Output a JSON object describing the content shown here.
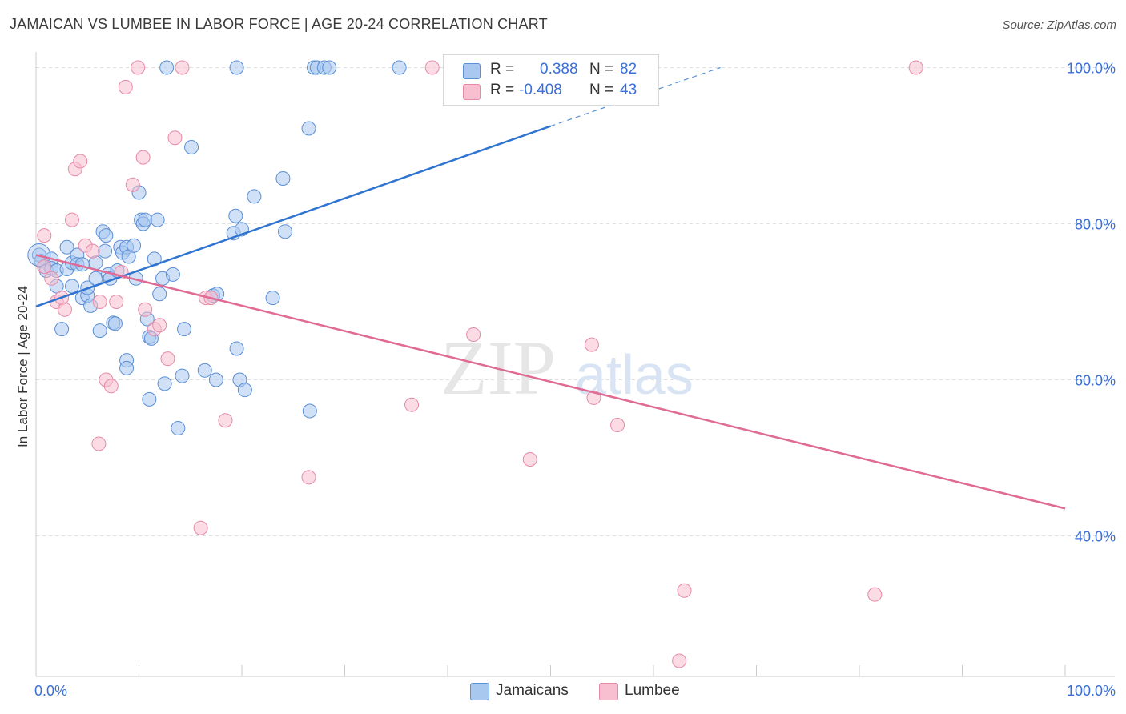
{
  "header": {
    "title": "JAMAICAN VS LUMBEE IN LABOR FORCE | AGE 20-24 CORRELATION CHART",
    "source": "Source: ZipAtlas.com"
  },
  "legend": {
    "series": [
      {
        "r_label": "R =",
        "r_value": "0.388",
        "n_label": "N =",
        "n_value": "82"
      },
      {
        "r_label": "R =",
        "r_value": "-0.408",
        "n_label": "N =",
        "n_value": "43"
      }
    ]
  },
  "bottom_legend": {
    "jamaicans": "Jamaicans",
    "lumbee": "Lumbee"
  },
  "watermark": {
    "zip": "ZIP",
    "atlas": "atlas"
  },
  "colors": {
    "jamaicans_fill": "#a9c8f0",
    "jamaicans_stroke": "#5b8fd6",
    "jamaicans_line": "#2f74d0",
    "lumbee_fill": "#f7bfd0",
    "lumbee_stroke": "#e68aa8",
    "lumbee_line": "#e06a93",
    "axis_label": "#3a6fd8",
    "grid": "#dddddd"
  },
  "chart_data": {
    "type": "scatter",
    "title": "JAMAICAN VS LUMBEE IN LABOR FORCE | AGE 20-24 CORRELATION CHART",
    "xlabel": "",
    "ylabel": "In Labor Force | Age 20-24",
    "xlim": [
      0,
      100
    ],
    "ylim": [
      22,
      102
    ],
    "x_tick_labels": [
      "0.0%",
      "100.0%"
    ],
    "y_ticks": [
      40,
      60,
      80,
      100
    ],
    "y_tick_labels": [
      "40.0%",
      "60.0%",
      "80.0%",
      "100.0%"
    ],
    "grid": true,
    "legend_position": "top-center",
    "series": [
      {
        "name": "Jamaicans",
        "r": 0.388,
        "n": 82,
        "trend": {
          "x0": 0,
          "y0": 69.4,
          "x1": 50,
          "y1": 92.5,
          "dashed_to_x": 66.5,
          "dashed_to_y": 100
        },
        "points": [
          [
            0.3,
            76.0
          ],
          [
            0.5,
            75.2
          ],
          [
            0.8,
            74.5
          ],
          [
            1.0,
            74.0
          ],
          [
            1.5,
            75.5
          ],
          [
            1.5,
            74.3
          ],
          [
            2.0,
            72.0
          ],
          [
            2.0,
            74.0
          ],
          [
            2.5,
            66.5
          ],
          [
            3.0,
            74.2
          ],
          [
            3.0,
            77.0
          ],
          [
            3.5,
            72.0
          ],
          [
            3.5,
            75.0
          ],
          [
            4.0,
            76.0
          ],
          [
            4.0,
            74.8
          ],
          [
            4.5,
            70.5
          ],
          [
            4.5,
            74.8
          ],
          [
            5.0,
            70.8
          ],
          [
            5.0,
            71.8
          ],
          [
            5.3,
            69.5
          ],
          [
            5.8,
            73.0
          ],
          [
            5.8,
            75.0
          ],
          [
            6.2,
            66.3
          ],
          [
            6.5,
            79.0
          ],
          [
            6.7,
            76.5
          ],
          [
            6.8,
            78.5
          ],
          [
            7.0,
            73.5
          ],
          [
            7.2,
            73.0
          ],
          [
            7.5,
            67.3
          ],
          [
            7.7,
            67.2
          ],
          [
            7.9,
            74.0
          ],
          [
            8.2,
            77.0
          ],
          [
            8.4,
            76.3
          ],
          [
            8.8,
            77.0
          ],
          [
            8.8,
            62.5
          ],
          [
            8.8,
            61.5
          ],
          [
            9.0,
            75.8
          ],
          [
            9.5,
            77.2
          ],
          [
            9.7,
            73.0
          ],
          [
            10.0,
            84.0
          ],
          [
            10.2,
            80.5
          ],
          [
            10.4,
            80.0
          ],
          [
            10.6,
            80.5
          ],
          [
            10.8,
            67.8
          ],
          [
            11.0,
            65.5
          ],
          [
            11.2,
            65.3
          ],
          [
            11.5,
            75.5
          ],
          [
            11.8,
            80.5
          ],
          [
            12.0,
            71.0
          ],
          [
            12.3,
            73.0
          ],
          [
            12.5,
            59.5
          ],
          [
            12.7,
            100.0
          ],
          [
            11.0,
            57.5
          ],
          [
            13.3,
            73.5
          ],
          [
            13.8,
            53.8
          ],
          [
            14.2,
            60.5
          ],
          [
            14.4,
            66.5
          ],
          [
            15.1,
            89.8
          ],
          [
            16.4,
            61.2
          ],
          [
            17.5,
            60.0
          ],
          [
            17.2,
            70.8
          ],
          [
            17.6,
            71.0
          ],
          [
            19.2,
            78.8
          ],
          [
            19.4,
            81.0
          ],
          [
            19.5,
            64.0
          ],
          [
            19.5,
            100.0
          ],
          [
            19.8,
            60.0
          ],
          [
            20.0,
            79.3
          ],
          [
            20.3,
            58.7
          ],
          [
            21.2,
            83.5
          ],
          [
            23.0,
            70.5
          ],
          [
            24.2,
            79.0
          ],
          [
            24.0,
            85.8
          ],
          [
            26.5,
            92.2
          ],
          [
            26.6,
            56.0
          ],
          [
            27.0,
            100.0
          ],
          [
            27.3,
            100.0
          ],
          [
            28.0,
            100.0
          ],
          [
            28.5,
            100.0
          ],
          [
            35.3,
            100.0
          ],
          [
            40.8,
            100.0
          ],
          [
            45.0,
            100.0
          ]
        ]
      },
      {
        "name": "Lumbee",
        "r": -0.408,
        "n": 43,
        "trend": {
          "x0": 0,
          "y0": 76.0,
          "x1": 100,
          "y1": 43.5
        },
        "points": [
          [
            0.8,
            78.5
          ],
          [
            0.8,
            74.5
          ],
          [
            1.5,
            73.0
          ],
          [
            2.0,
            70.0
          ],
          [
            2.5,
            70.5
          ],
          [
            2.8,
            69.0
          ],
          [
            3.5,
            80.5
          ],
          [
            3.8,
            87.0
          ],
          [
            4.3,
            88.0
          ],
          [
            4.8,
            77.2
          ],
          [
            5.5,
            76.5
          ],
          [
            6.1,
            51.8
          ],
          [
            6.2,
            70.0
          ],
          [
            6.8,
            60.0
          ],
          [
            7.3,
            59.2
          ],
          [
            7.8,
            70.0
          ],
          [
            8.3,
            73.8
          ],
          [
            8.7,
            97.5
          ],
          [
            9.4,
            85.0
          ],
          [
            9.9,
            100.0
          ],
          [
            10.4,
            88.5
          ],
          [
            10.6,
            69.0
          ],
          [
            11.5,
            66.5
          ],
          [
            12.0,
            67.0
          ],
          [
            12.8,
            62.7
          ],
          [
            13.5,
            91.0
          ],
          [
            14.2,
            100.0
          ],
          [
            16.5,
            70.5
          ],
          [
            17.0,
            70.5
          ],
          [
            16.0,
            41.0
          ],
          [
            18.4,
            54.8
          ],
          [
            26.5,
            47.5
          ],
          [
            36.5,
            56.8
          ],
          [
            42.5,
            65.8
          ],
          [
            48.0,
            49.8
          ],
          [
            54.0,
            64.5
          ],
          [
            54.2,
            57.7
          ],
          [
            56.5,
            54.2
          ],
          [
            63.0,
            33.0
          ],
          [
            62.5,
            24.0
          ],
          [
            81.5,
            32.5
          ],
          [
            85.5,
            100.0
          ],
          [
            38.5,
            100.0
          ]
        ]
      }
    ]
  }
}
